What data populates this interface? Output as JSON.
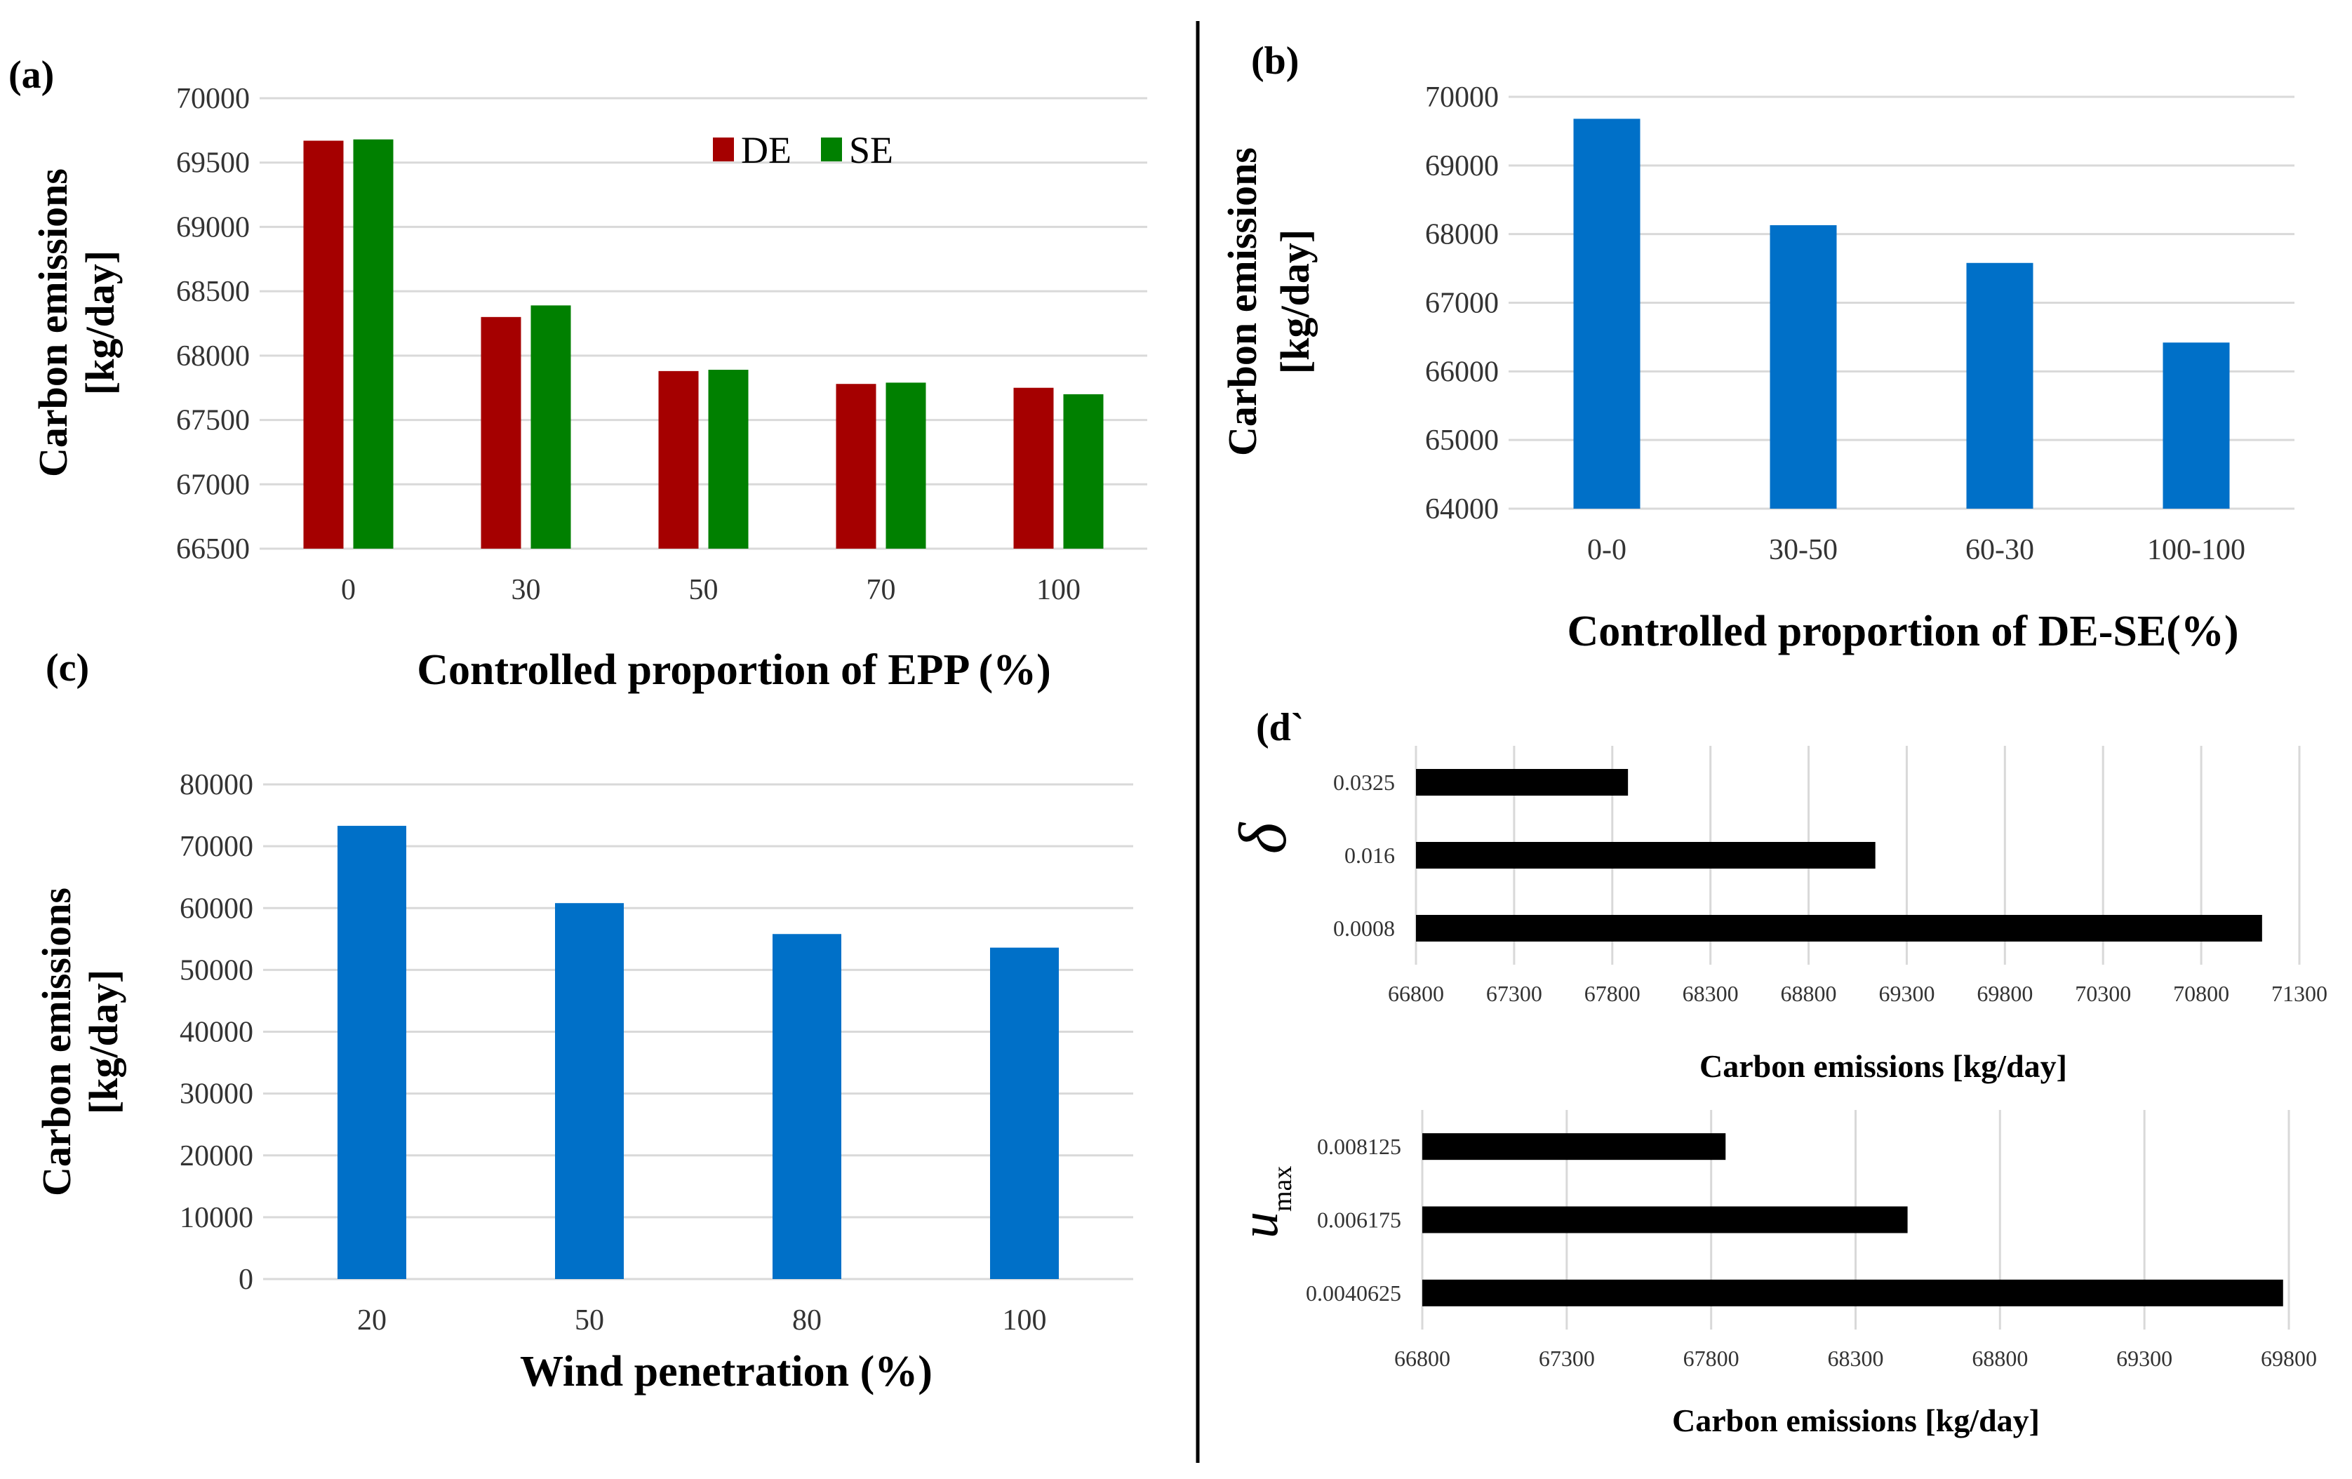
{
  "chart_data": [
    {
      "panel": "(a)",
      "type": "bar",
      "categories": [
        "0",
        "30",
        "50",
        "70",
        "100"
      ],
      "series": [
        {
          "name": "DE",
          "color": "#a50000",
          "values": [
            69670,
            68300,
            67880,
            67780,
            67750
          ]
        },
        {
          "name": "SE",
          "color": "#008000",
          "values": [
            69680,
            68390,
            67890,
            67790,
            67700
          ]
        }
      ],
      "xlabel": "Controlled proportion of EPP (%)",
      "ylabel": [
        "Carbon emissions",
        "[kg/day]"
      ],
      "ylim": [
        66500,
        70000
      ],
      "yticks": [
        "66500",
        "67000",
        "67500",
        "68000",
        "68500",
        "69000",
        "69500",
        "70000"
      ],
      "legend": "top-right",
      "grid": true
    },
    {
      "panel": "(b)",
      "type": "bar",
      "categories": [
        "0-0",
        "30-50",
        "60-30",
        "100-100"
      ],
      "series": [
        {
          "color": "#0070c8",
          "values": [
            69680,
            68130,
            67580,
            66420
          ]
        }
      ],
      "xlabel": "Controlled proportion of DE-SE(%)",
      "ylabel": [
        "Carbon emissions",
        "[kg/day]"
      ],
      "ylim": [
        64000,
        70000
      ],
      "yticks": [
        "64000",
        "65000",
        "66000",
        "67000",
        "68000",
        "69000",
        "70000"
      ],
      "grid": true
    },
    {
      "panel": "(c)",
      "type": "bar",
      "categories": [
        "20",
        "50",
        "80",
        "100"
      ],
      "series": [
        {
          "color": "#0070c8",
          "values": [
            73300,
            60800,
            55800,
            53600
          ]
        }
      ],
      "xlabel": "Wind penetration (%)",
      "ylabel": [
        "Carbon emissions",
        "[kg/day]"
      ],
      "ylim": [
        0,
        80000
      ],
      "yticks": [
        "0",
        "10000",
        "20000",
        "30000",
        "40000",
        "50000",
        "60000",
        "70000",
        "80000"
      ],
      "grid": true
    },
    {
      "panel": "(d`",
      "type": "bar",
      "orientation": "horizontal",
      "symbol": "δ",
      "categories": [
        "0.0325",
        "0.016",
        "0.0008"
      ],
      "series": [
        {
          "color": "#000000",
          "values": [
            67880,
            69140,
            71110
          ]
        }
      ],
      "xlabel": "Carbon emissions [kg/day]",
      "xlim": [
        66800,
        71300
      ],
      "xticks": [
        "66800",
        "67300",
        "67800",
        "68300",
        "68800",
        "69300",
        "69800",
        "70300",
        "70800",
        "71300"
      ],
      "grid": true
    },
    {
      "type": "bar",
      "orientation": "horizontal",
      "symbol": "u",
      "symbol_sub": "max",
      "categories": [
        "0.008125",
        "0.006175",
        "0.0040625"
      ],
      "series": [
        {
          "color": "#000000",
          "values": [
            67850,
            68480,
            69780
          ]
        }
      ],
      "xlabel": "Carbon emissions [kg/day]",
      "xlim": [
        66800,
        69800
      ],
      "xticks": [
        "66800",
        "67300",
        "67800",
        "68300",
        "68800",
        "69300",
        "69800"
      ],
      "grid": true
    }
  ]
}
